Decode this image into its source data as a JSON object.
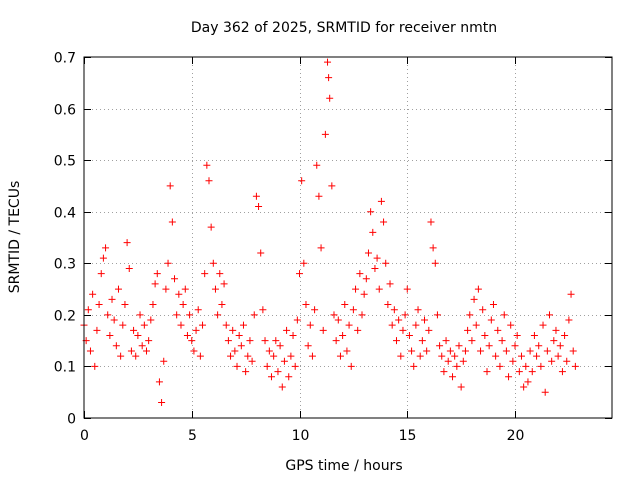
{
  "chart_data": {
    "type": "scatter",
    "title": "Day 362 of 2025, SRMTID for receiver nmtn",
    "xlabel": "GPS time / hours",
    "ylabel": "SRMTID / TECUs",
    "xlim": [
      0,
      24.5
    ],
    "ylim": [
      0,
      0.7
    ],
    "x_ticks": [
      0,
      5,
      10,
      15,
      20
    ],
    "y_ticks": [
      0,
      0.1,
      0.2,
      0.3,
      0.4,
      0.5,
      0.6,
      0.7
    ],
    "x_tick_labels": [
      "0",
      "5",
      "10",
      "15",
      "20"
    ],
    "y_tick_labels": [
      "0",
      "0.1",
      "0.2",
      "0.3",
      "0.4",
      "0.5",
      "0.6",
      "0.7"
    ],
    "grid": true,
    "marker": "+",
    "color": "#ff0000",
    "series": [
      {
        "name": "nmtn",
        "points": [
          [
            0.0,
            0.18
          ],
          [
            0.1,
            0.15
          ],
          [
            0.2,
            0.21
          ],
          [
            0.3,
            0.13
          ],
          [
            0.4,
            0.24
          ],
          [
            0.5,
            0.1
          ],
          [
            0.6,
            0.17
          ],
          [
            0.7,
            0.22
          ],
          [
            0.8,
            0.28
          ],
          [
            0.9,
            0.31
          ],
          [
            1.0,
            0.33
          ],
          [
            1.1,
            0.2
          ],
          [
            1.2,
            0.16
          ],
          [
            1.3,
            0.23
          ],
          [
            1.4,
            0.19
          ],
          [
            1.5,
            0.14
          ],
          [
            1.6,
            0.25
          ],
          [
            1.7,
            0.12
          ],
          [
            1.8,
            0.18
          ],
          [
            1.9,
            0.22
          ],
          [
            2.0,
            0.34
          ],
          [
            2.1,
            0.29
          ],
          [
            2.2,
            0.13
          ],
          [
            2.3,
            0.17
          ],
          [
            2.4,
            0.12
          ],
          [
            2.5,
            0.16
          ],
          [
            2.6,
            0.2
          ],
          [
            2.7,
            0.14
          ],
          [
            2.8,
            0.18
          ],
          [
            2.9,
            0.13
          ],
          [
            3.0,
            0.15
          ],
          [
            3.1,
            0.19
          ],
          [
            3.2,
            0.22
          ],
          [
            3.3,
            0.26
          ],
          [
            3.4,
            0.28
          ],
          [
            3.5,
            0.07
          ],
          [
            3.6,
            0.03
          ],
          [
            3.7,
            0.11
          ],
          [
            3.8,
            0.25
          ],
          [
            3.9,
            0.3
          ],
          [
            4.0,
            0.45
          ],
          [
            4.1,
            0.38
          ],
          [
            4.2,
            0.27
          ],
          [
            4.3,
            0.2
          ],
          [
            4.4,
            0.24
          ],
          [
            4.5,
            0.18
          ],
          [
            4.6,
            0.22
          ],
          [
            4.7,
            0.25
          ],
          [
            4.8,
            0.16
          ],
          [
            4.9,
            0.2
          ],
          [
            5.0,
            0.15
          ],
          [
            5.1,
            0.13
          ],
          [
            5.2,
            0.17
          ],
          [
            5.3,
            0.21
          ],
          [
            5.4,
            0.12
          ],
          [
            5.5,
            0.18
          ],
          [
            5.6,
            0.28
          ],
          [
            5.7,
            0.49
          ],
          [
            5.8,
            0.46
          ],
          [
            5.9,
            0.37
          ],
          [
            6.0,
            0.3
          ],
          [
            6.1,
            0.25
          ],
          [
            6.2,
            0.2
          ],
          [
            6.3,
            0.28
          ],
          [
            6.4,
            0.22
          ],
          [
            6.5,
            0.26
          ],
          [
            6.6,
            0.18
          ],
          [
            6.7,
            0.15
          ],
          [
            6.8,
            0.12
          ],
          [
            6.9,
            0.17
          ],
          [
            7.0,
            0.13
          ],
          [
            7.1,
            0.1
          ],
          [
            7.2,
            0.16
          ],
          [
            7.3,
            0.14
          ],
          [
            7.4,
            0.18
          ],
          [
            7.5,
            0.09
          ],
          [
            7.6,
            0.12
          ],
          [
            7.7,
            0.15
          ],
          [
            7.8,
            0.11
          ],
          [
            7.9,
            0.2
          ],
          [
            8.0,
            0.43
          ],
          [
            8.1,
            0.41
          ],
          [
            8.2,
            0.32
          ],
          [
            8.3,
            0.21
          ],
          [
            8.4,
            0.15
          ],
          [
            8.5,
            0.1
          ],
          [
            8.6,
            0.13
          ],
          [
            8.7,
            0.08
          ],
          [
            8.8,
            0.12
          ],
          [
            8.9,
            0.15
          ],
          [
            9.0,
            0.09
          ],
          [
            9.1,
            0.14
          ],
          [
            9.2,
            0.06
          ],
          [
            9.3,
            0.11
          ],
          [
            9.4,
            0.17
          ],
          [
            9.5,
            0.08
          ],
          [
            9.6,
            0.12
          ],
          [
            9.7,
            0.16
          ],
          [
            9.8,
            0.1
          ],
          [
            9.9,
            0.19
          ],
          [
            10.0,
            0.28
          ],
          [
            10.1,
            0.46
          ],
          [
            10.2,
            0.3
          ],
          [
            10.3,
            0.22
          ],
          [
            10.4,
            0.14
          ],
          [
            10.5,
            0.18
          ],
          [
            10.6,
            0.12
          ],
          [
            10.7,
            0.21
          ],
          [
            10.8,
            0.49
          ],
          [
            10.9,
            0.43
          ],
          [
            11.0,
            0.33
          ],
          [
            11.1,
            0.17
          ],
          [
            11.2,
            0.55
          ],
          [
            11.3,
            0.69
          ],
          [
            11.35,
            0.66
          ],
          [
            11.4,
            0.62
          ],
          [
            11.5,
            0.45
          ],
          [
            11.6,
            0.2
          ],
          [
            11.7,
            0.15
          ],
          [
            11.8,
            0.19
          ],
          [
            11.9,
            0.12
          ],
          [
            12.0,
            0.16
          ],
          [
            12.1,
            0.22
          ],
          [
            12.2,
            0.13
          ],
          [
            12.3,
            0.18
          ],
          [
            12.4,
            0.1
          ],
          [
            12.5,
            0.21
          ],
          [
            12.6,
            0.25
          ],
          [
            12.7,
            0.17
          ],
          [
            12.8,
            0.28
          ],
          [
            12.9,
            0.2
          ],
          [
            13.0,
            0.24
          ],
          [
            13.1,
            0.27
          ],
          [
            13.2,
            0.32
          ],
          [
            13.3,
            0.4
          ],
          [
            13.4,
            0.36
          ],
          [
            13.5,
            0.29
          ],
          [
            13.6,
            0.31
          ],
          [
            13.7,
            0.25
          ],
          [
            13.8,
            0.42
          ],
          [
            13.9,
            0.38
          ],
          [
            14.0,
            0.3
          ],
          [
            14.1,
            0.22
          ],
          [
            14.2,
            0.26
          ],
          [
            14.3,
            0.18
          ],
          [
            14.4,
            0.21
          ],
          [
            14.5,
            0.15
          ],
          [
            14.6,
            0.19
          ],
          [
            14.7,
            0.12
          ],
          [
            14.8,
            0.17
          ],
          [
            14.9,
            0.2
          ],
          [
            15.0,
            0.25
          ],
          [
            15.1,
            0.16
          ],
          [
            15.2,
            0.13
          ],
          [
            15.3,
            0.1
          ],
          [
            15.4,
            0.18
          ],
          [
            15.5,
            0.21
          ],
          [
            15.6,
            0.12
          ],
          [
            15.7,
            0.15
          ],
          [
            15.8,
            0.19
          ],
          [
            15.9,
            0.13
          ],
          [
            16.0,
            0.17
          ],
          [
            16.1,
            0.38
          ],
          [
            16.2,
            0.33
          ],
          [
            16.3,
            0.3
          ],
          [
            16.4,
            0.2
          ],
          [
            16.5,
            0.14
          ],
          [
            16.6,
            0.12
          ],
          [
            16.7,
            0.09
          ],
          [
            16.8,
            0.15
          ],
          [
            16.9,
            0.11
          ],
          [
            17.0,
            0.13
          ],
          [
            17.1,
            0.08
          ],
          [
            17.2,
            0.12
          ],
          [
            17.3,
            0.1
          ],
          [
            17.4,
            0.14
          ],
          [
            17.5,
            0.06
          ],
          [
            17.6,
            0.11
          ],
          [
            17.7,
            0.13
          ],
          [
            17.8,
            0.17
          ],
          [
            17.9,
            0.2
          ],
          [
            18.0,
            0.15
          ],
          [
            18.1,
            0.23
          ],
          [
            18.2,
            0.18
          ],
          [
            18.3,
            0.25
          ],
          [
            18.4,
            0.13
          ],
          [
            18.5,
            0.21
          ],
          [
            18.6,
            0.16
          ],
          [
            18.7,
            0.09
          ],
          [
            18.8,
            0.14
          ],
          [
            18.9,
            0.19
          ],
          [
            19.0,
            0.22
          ],
          [
            19.1,
            0.12
          ],
          [
            19.2,
            0.17
          ],
          [
            19.3,
            0.1
          ],
          [
            19.4,
            0.15
          ],
          [
            19.5,
            0.2
          ],
          [
            19.6,
            0.13
          ],
          [
            19.7,
            0.08
          ],
          [
            19.8,
            0.18
          ],
          [
            19.9,
            0.11
          ],
          [
            20.0,
            0.14
          ],
          [
            20.1,
            0.16
          ],
          [
            20.2,
            0.09
          ],
          [
            20.3,
            0.12
          ],
          [
            20.4,
            0.06
          ],
          [
            20.5,
            0.1
          ],
          [
            20.6,
            0.07
          ],
          [
            20.7,
            0.13
          ],
          [
            20.8,
            0.09
          ],
          [
            20.9,
            0.16
          ],
          [
            21.0,
            0.12
          ],
          [
            21.1,
            0.14
          ],
          [
            21.2,
            0.1
          ],
          [
            21.3,
            0.18
          ],
          [
            21.4,
            0.05
          ],
          [
            21.5,
            0.13
          ],
          [
            21.6,
            0.2
          ],
          [
            21.7,
            0.11
          ],
          [
            21.8,
            0.15
          ],
          [
            21.9,
            0.17
          ],
          [
            22.0,
            0.12
          ],
          [
            22.1,
            0.14
          ],
          [
            22.2,
            0.09
          ],
          [
            22.3,
            0.16
          ],
          [
            22.4,
            0.11
          ],
          [
            22.5,
            0.19
          ],
          [
            22.6,
            0.24
          ],
          [
            22.7,
            0.13
          ],
          [
            22.8,
            0.1
          ]
        ]
      }
    ]
  }
}
